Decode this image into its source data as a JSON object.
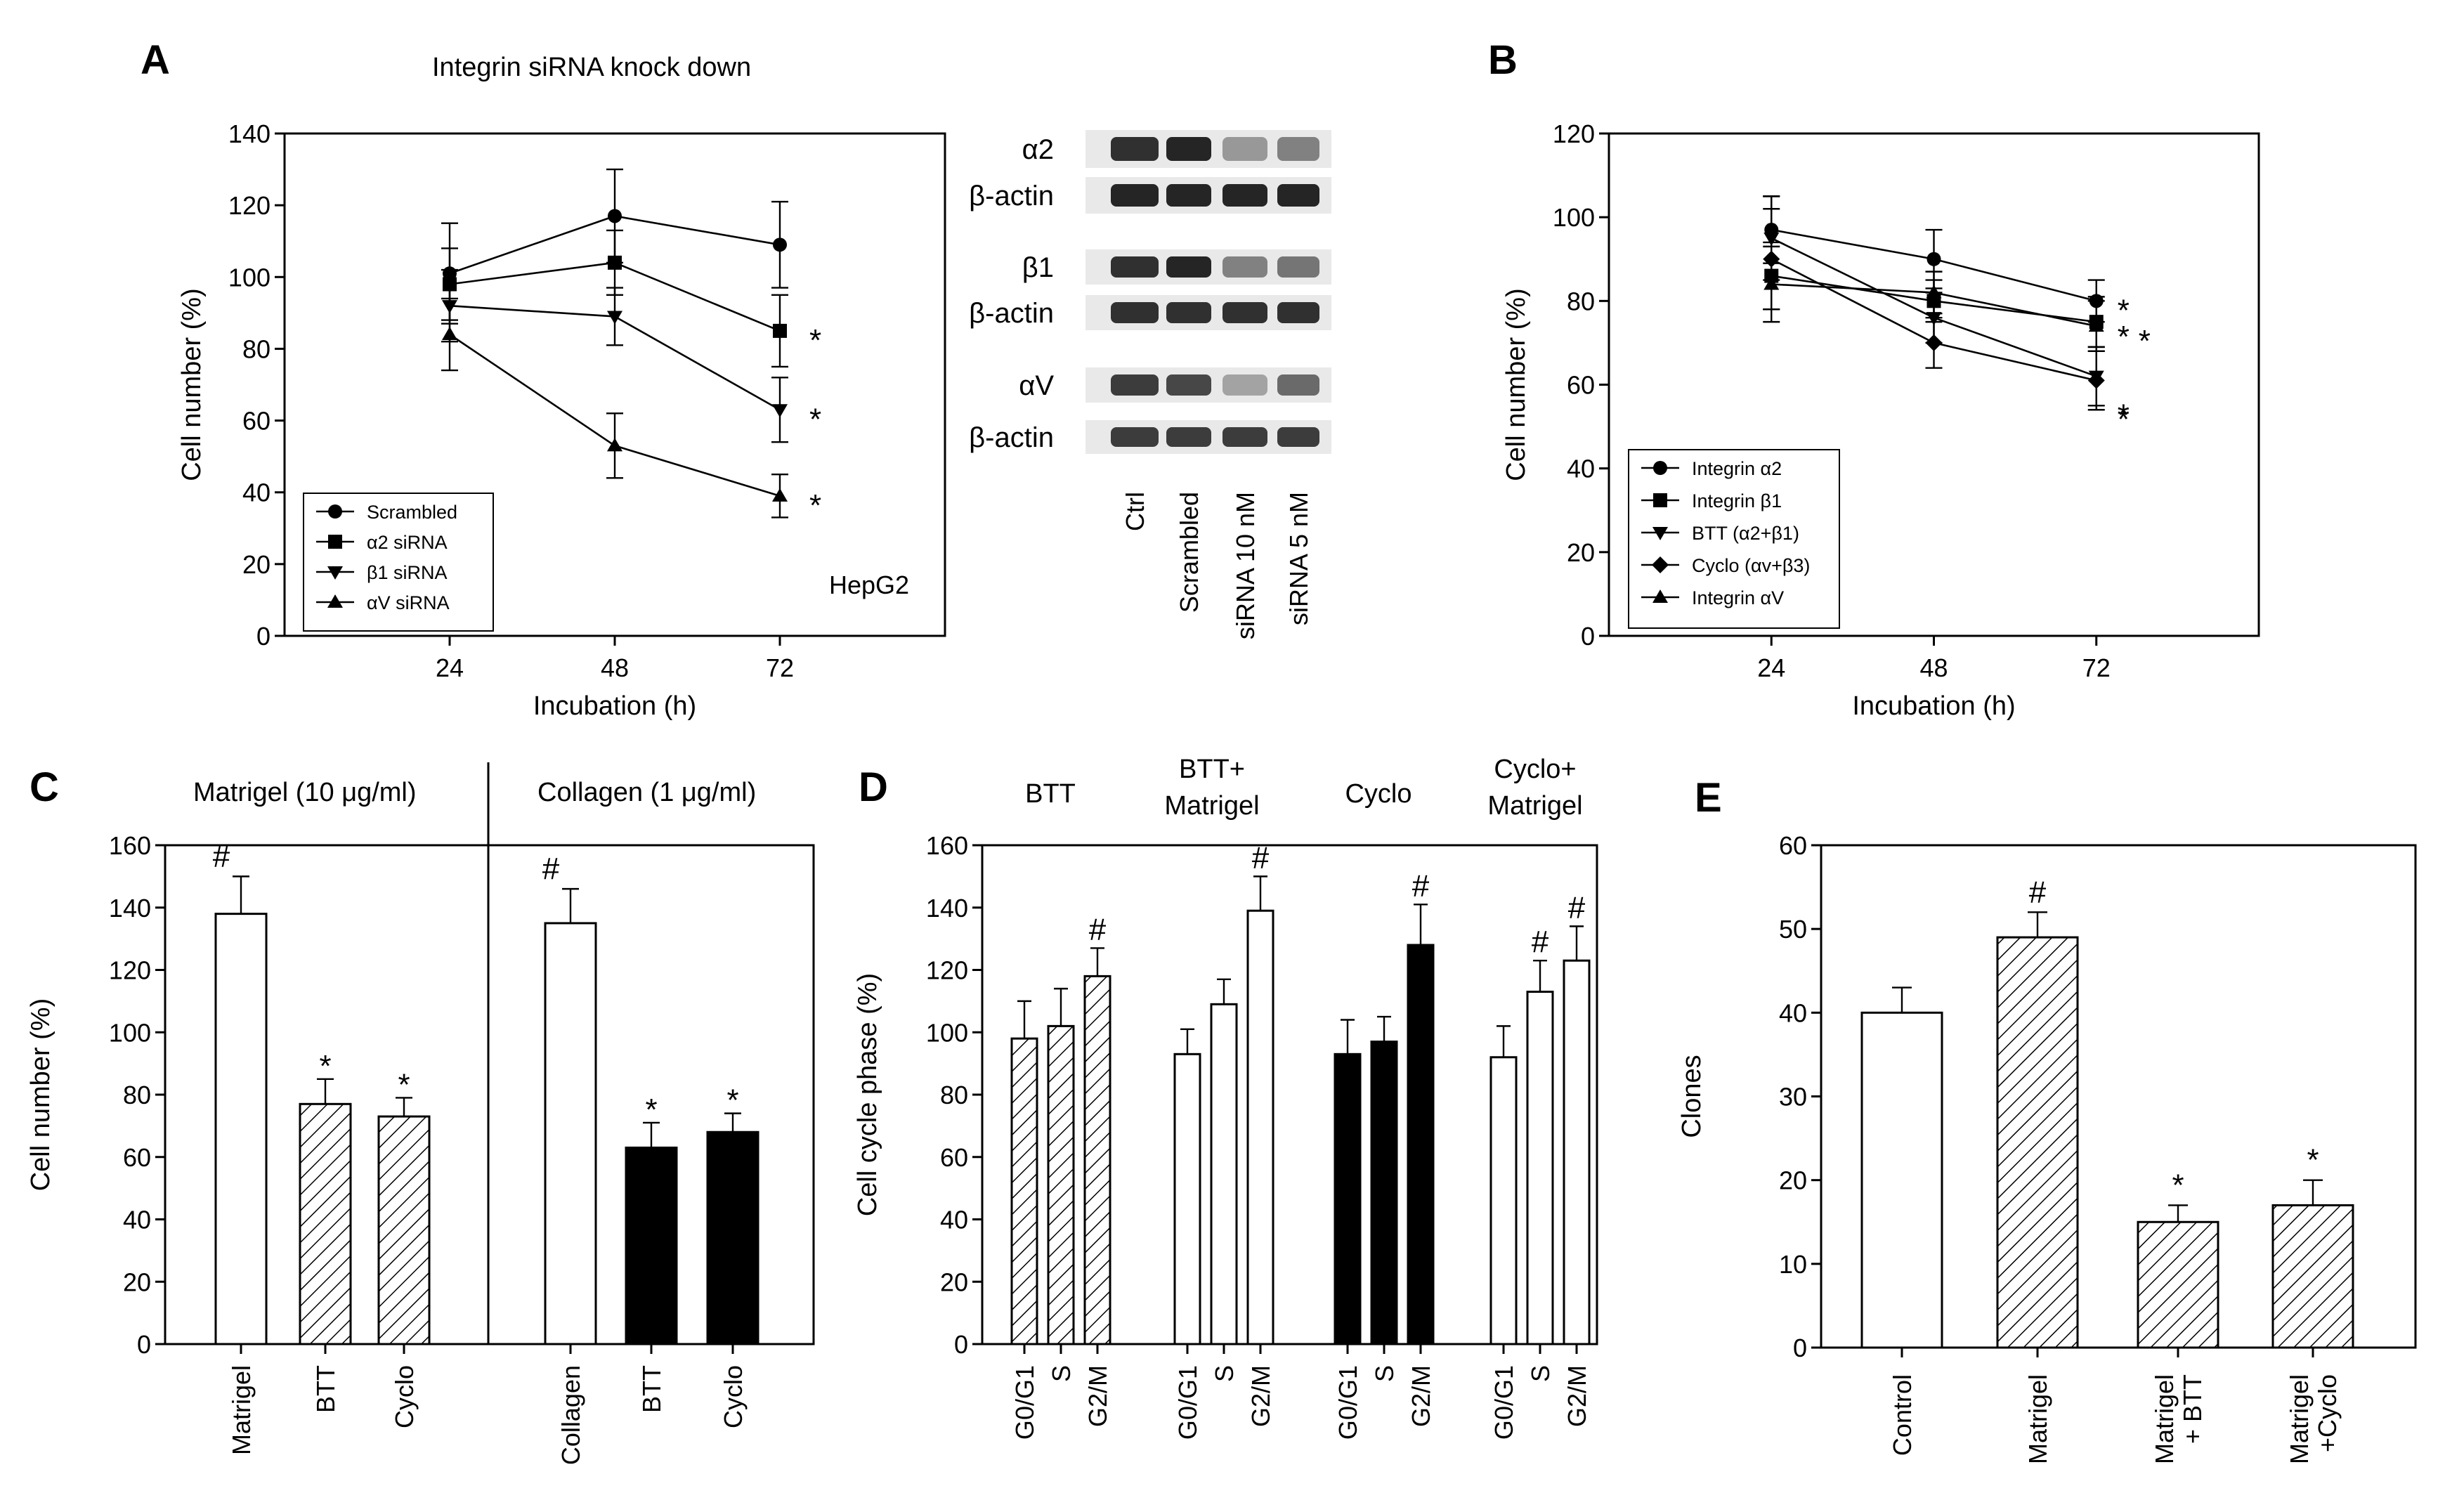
{
  "figure_labels": {
    "A": "A",
    "B": "B",
    "C": "C",
    "D": "D",
    "E": "E"
  },
  "chart_data": [
    {
      "id": "A",
      "type": "line",
      "title": "Integrin siRNA knock down",
      "xlabel": "Incubation (h)",
      "ylabel": "Cell number (%)",
      "x": [
        24,
        48,
        72
      ],
      "xlim": [
        0,
        96
      ],
      "ylim": [
        0,
        140
      ],
      "yticks": [
        0,
        20,
        40,
        60,
        80,
        100,
        120,
        140
      ],
      "annotation": "HepG2",
      "legend_position": "bottom-left",
      "series": [
        {
          "name": "Scrambled",
          "marker": "circle",
          "values": [
            101,
            117,
            109
          ],
          "errors": [
            14,
            13,
            12
          ],
          "sig": [
            "",
            "",
            ""
          ]
        },
        {
          "name": "α2 siRNA",
          "marker": "square",
          "values": [
            98,
            104,
            85
          ],
          "errors": [
            10,
            9,
            10
          ],
          "sig": [
            "",
            "",
            "*"
          ]
        },
        {
          "name": "β1 siRNA",
          "marker": "triangle-down",
          "values": [
            92,
            89,
            63
          ],
          "errors": [
            10,
            8,
            9
          ],
          "sig": [
            "",
            "",
            "*"
          ]
        },
        {
          "name": "αV siRNA",
          "marker": "triangle-up",
          "values": [
            84,
            53,
            39
          ],
          "errors": [
            10,
            9,
            6
          ],
          "sig": [
            "",
            "",
            "*"
          ]
        }
      ]
    },
    {
      "id": "A-blot",
      "type": "western-blot",
      "lanes": [
        "Ctrl",
        "Scrambled",
        "siRNA 10 nM",
        "siRNA 5 nM"
      ],
      "rows": [
        "α2",
        "β-actin",
        "β1",
        "β-actin",
        "αV",
        "β-actin"
      ]
    },
    {
      "id": "B",
      "type": "line",
      "xlabel": "Incubation (h)",
      "ylabel": "Cell number (%)",
      "x": [
        24,
        48,
        72
      ],
      "xlim": [
        0,
        96
      ],
      "ylim": [
        0,
        120
      ],
      "yticks": [
        0,
        20,
        40,
        60,
        80,
        100,
        120
      ],
      "legend_position": "bottom-left",
      "series": [
        {
          "name": "Integrin α2",
          "marker": "circle",
          "values": [
            97,
            90,
            80
          ],
          "errors": [
            8,
            7,
            5
          ],
          "sig": [
            "",
            "",
            "*"
          ]
        },
        {
          "name": "Integrin β1",
          "marker": "square",
          "values": [
            86,
            80,
            75
          ],
          "errors": [
            8,
            5,
            6
          ],
          "sig": [
            "",
            "",
            "*"
          ]
        },
        {
          "name": "BTT (α2+β1)",
          "marker": "triangle-down",
          "values": [
            95,
            76,
            62
          ],
          "errors": [
            10,
            6,
            7
          ],
          "sig": [
            "",
            "",
            "*"
          ]
        },
        {
          "name": "Cyclo (αv+β3)",
          "marker": "diamond",
          "values": [
            90,
            70,
            61
          ],
          "errors": [
            12,
            6,
            7
          ],
          "sig": [
            "",
            "",
            "*"
          ]
        },
        {
          "name": "Integrin αV",
          "marker": "triangle-up",
          "values": [
            84,
            82,
            74
          ],
          "errors": [
            9,
            5,
            6
          ],
          "sig": [
            "",
            "",
            "*"
          ]
        }
      ]
    },
    {
      "id": "C",
      "type": "bar",
      "ylabel": "Cell number (%)",
      "ylim": [
        0,
        160
      ],
      "yticks": [
        0,
        20,
        40,
        60,
        80,
        100,
        120,
        140,
        160
      ],
      "groups": [
        "Matrigel (10 μg/ml)",
        "Collagen (1 μg/ml)"
      ],
      "categories": [
        "Matrigel",
        "BTT",
        "Cyclo",
        "Collagen",
        "BTT",
        "Cyclo"
      ],
      "values": [
        138,
        77,
        73,
        135,
        63,
        68
      ],
      "errors": [
        12,
        8,
        6,
        11,
        8,
        6
      ],
      "fills": [
        "white",
        "hatch",
        "hatch",
        "white",
        "black",
        "black"
      ],
      "sig": [
        "#",
        "*",
        "*",
        "#",
        "*",
        "*"
      ]
    },
    {
      "id": "D",
      "type": "bar",
      "ylabel": "Cell cycle phase (%)",
      "ylim": [
        0,
        160
      ],
      "yticks": [
        0,
        20,
        40,
        60,
        80,
        100,
        120,
        140,
        160
      ],
      "groups": [
        {
          "title": "BTT",
          "fill": "hatch",
          "categories": [
            "G0/G1",
            "S",
            "G2/M"
          ],
          "values": [
            98,
            102,
            118
          ],
          "errors": [
            12,
            12,
            9
          ],
          "sig": [
            "",
            "",
            "#"
          ]
        },
        {
          "title": "BTT+\nMatrigel",
          "fill": "white",
          "categories": [
            "G0/G1",
            "S",
            "G2/M"
          ],
          "values": [
            93,
            109,
            139
          ],
          "errors": [
            8,
            8,
            11
          ],
          "sig": [
            "",
            "",
            "#"
          ]
        },
        {
          "title": "Cyclo",
          "fill": "black",
          "categories": [
            "G0/G1",
            "S",
            "G2/M"
          ],
          "values": [
            93,
            97,
            128
          ],
          "errors": [
            11,
            8,
            13
          ],
          "sig": [
            "",
            "",
            "#"
          ]
        },
        {
          "title": "Cyclo+\nMatrigel",
          "fill": "white",
          "categories": [
            "G0/G1",
            "S",
            "G2/M"
          ],
          "values": [
            92,
            113,
            123
          ],
          "errors": [
            10,
            10,
            11
          ],
          "sig": [
            "",
            "#",
            "#"
          ]
        }
      ]
    },
    {
      "id": "E",
      "type": "bar",
      "ylabel": "Clones",
      "ylim": [
        0,
        60
      ],
      "yticks": [
        0,
        10,
        20,
        30,
        40,
        50,
        60
      ],
      "categories": [
        "Control",
        "Matrigel",
        "Matrigel\n+ BTT",
        "Matrigel\n+Cyclo"
      ],
      "values": [
        40,
        49,
        15,
        17
      ],
      "errors": [
        3,
        3,
        2,
        3
      ],
      "fills": [
        "white",
        "hatch",
        "hatch",
        "hatch"
      ],
      "sig": [
        "",
        "#",
        "*",
        "*"
      ]
    }
  ]
}
